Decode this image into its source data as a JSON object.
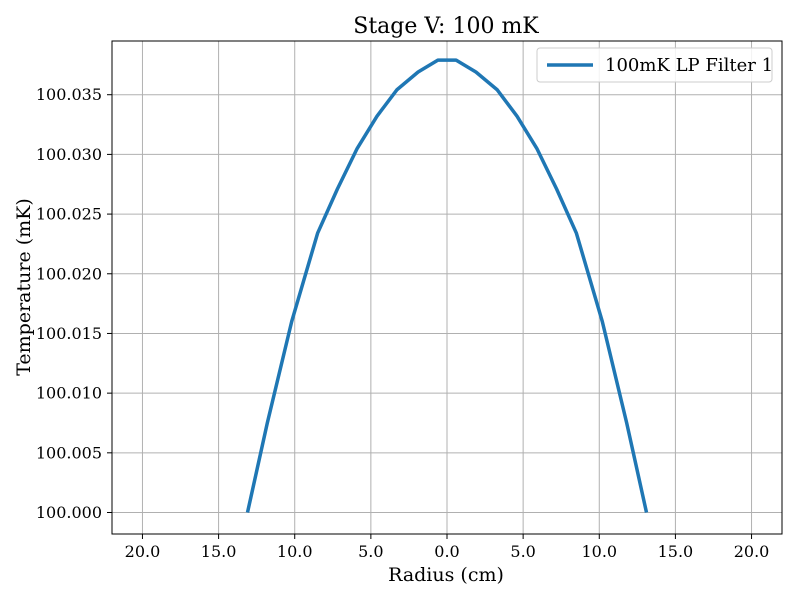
{
  "chart_data": {
    "type": "line",
    "title": "Stage V: 100 mK",
    "xlabel": "Radius (cm)",
    "ylabel": "Temperature (mK)",
    "xlim": [
      -22.0,
      22.0
    ],
    "ylim": [
      99.9982,
      100.0395
    ],
    "x_ticks": [
      -20,
      -15,
      -10,
      -5,
      0,
      5,
      10,
      15,
      20
    ],
    "x_tick_labels": [
      "20.0",
      "15.0",
      "10.0",
      "5.0",
      "0.0",
      "5.0",
      "10.0",
      "15.0",
      "20.0"
    ],
    "y_ticks": [
      100.0,
      100.005,
      100.01,
      100.015,
      100.02,
      100.025,
      100.03,
      100.035
    ],
    "y_tick_labels": [
      "100.000",
      "100.005",
      "100.010",
      "100.015",
      "100.020",
      "100.025",
      "100.030",
      "100.035"
    ],
    "grid": true,
    "legend_position": "upper right",
    "series": [
      {
        "name": "100mK LP Filter 1",
        "color": "#1f77b4",
        "x": [
          -13.1,
          -11.8,
          -10.2,
          -8.5,
          -7.2,
          -5.9,
          -4.6,
          -3.3,
          -1.9,
          -0.6,
          0.6,
          1.9,
          3.3,
          4.6,
          5.9,
          7.2,
          8.5,
          10.2,
          11.8,
          13.1
        ],
        "y": [
          100.0,
          100.0075,
          100.016,
          100.0234,
          100.0271,
          100.0305,
          100.0332,
          100.0354,
          100.0369,
          100.0379,
          100.0379,
          100.0369,
          100.0354,
          100.0332,
          100.0305,
          100.0271,
          100.0234,
          100.016,
          100.0075,
          100.0
        ]
      }
    ]
  }
}
